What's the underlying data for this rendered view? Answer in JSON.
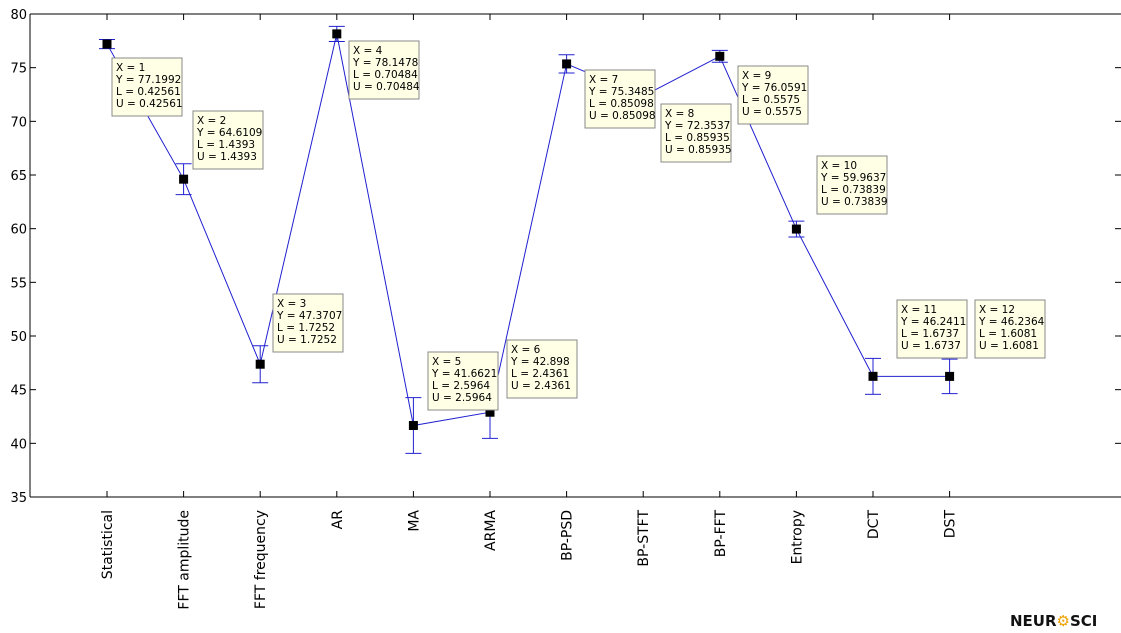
{
  "chart_data": {
    "type": "line",
    "categories": [
      "Statistical",
      "FFT amplitude",
      "FFT frequency",
      "AR",
      "MA",
      "ARMA",
      "BP-PSD",
      "BP-STFT",
      "BP-FFT",
      "Entropy",
      "DCT",
      "DST"
    ],
    "ylim": [
      35,
      80
    ],
    "yticks": [
      35,
      40,
      45,
      50,
      55,
      60,
      65,
      70,
      75,
      80
    ],
    "grid": false,
    "line_color": "#2020d0",
    "series": [
      {
        "points": [
          {
            "x": 1,
            "y": 77.1992,
            "L": 0.42561,
            "U": 0.42561
          },
          {
            "x": 2,
            "y": 64.6109,
            "L": 1.4393,
            "U": 1.4393
          },
          {
            "x": 3,
            "y": 47.3707,
            "L": 1.7252,
            "U": 1.7252
          },
          {
            "x": 4,
            "y": 78.1478,
            "L": 0.70484,
            "U": 0.70484
          },
          {
            "x": 5,
            "y": 41.6621,
            "L": 2.5964,
            "U": 2.5964
          },
          {
            "x": 6,
            "y": 42.898,
            "L": 2.4361,
            "U": 2.4361
          },
          {
            "x": 7,
            "y": 75.3485,
            "L": 0.85098,
            "U": 0.85098
          },
          {
            "x": 8,
            "y": 72.3537,
            "L": 0.85935,
            "U": 0.85935
          },
          {
            "x": 9,
            "y": 76.0591,
            "L": 0.5575,
            "U": 0.5575
          },
          {
            "x": 10,
            "y": 59.9637,
            "L": 0.73839,
            "U": 0.73839
          },
          {
            "x": 11,
            "y": 46.2411,
            "L": 1.6737,
            "U": 1.6737
          },
          {
            "x": 12,
            "y": 46.2364,
            "L": 1.6081,
            "U": 1.6081
          }
        ]
      }
    ],
    "datatips": [
      {
        "lines": [
          "X = 1",
          "Y = 77.1992",
          "L = 0.42561",
          "U = 0.42561"
        ]
      },
      {
        "lines": [
          "X = 2",
          "Y = 64.6109",
          "L = 1.4393",
          "U = 1.4393"
        ]
      },
      {
        "lines": [
          "X = 3",
          "Y = 47.3707",
          "L = 1.7252",
          "U = 1.7252"
        ]
      },
      {
        "lines": [
          "X = 4",
          "Y = 78.1478",
          "L = 0.70484",
          "U = 0.70484"
        ]
      },
      {
        "lines": [
          "X = 5",
          "Y = 41.6621",
          "L = 2.5964",
          "U = 2.5964"
        ]
      },
      {
        "lines": [
          "X = 6",
          "Y = 42.898",
          "L = 2.4361",
          "U = 2.4361"
        ]
      },
      {
        "lines": [
          "X = 7",
          "Y = 75.3485",
          "L = 0.85098",
          "U = 0.85098"
        ]
      },
      {
        "lines": [
          "X = 8",
          "Y = 72.3537",
          "L = 0.85935",
          "U = 0.85935"
        ]
      },
      {
        "lines": [
          "X = 9",
          "Y = 76.0591",
          "L = 0.5575",
          "U = 0.5575"
        ]
      },
      {
        "lines": [
          "X = 10",
          "Y = 59.9637",
          "L = 0.73839",
          "U = 0.73839"
        ]
      },
      {
        "lines": [
          "X = 11",
          "Y = 46.2411",
          "L = 1.6737",
          "U = 1.6737"
        ]
      },
      {
        "lines": [
          "X = 12",
          "Y = 46.2364",
          "L = 1.6081",
          "U = 1.6081"
        ]
      }
    ]
  },
  "watermark": {
    "text_left": "NEUR",
    "icon": "gear-icon",
    "text_right": "SCI"
  }
}
